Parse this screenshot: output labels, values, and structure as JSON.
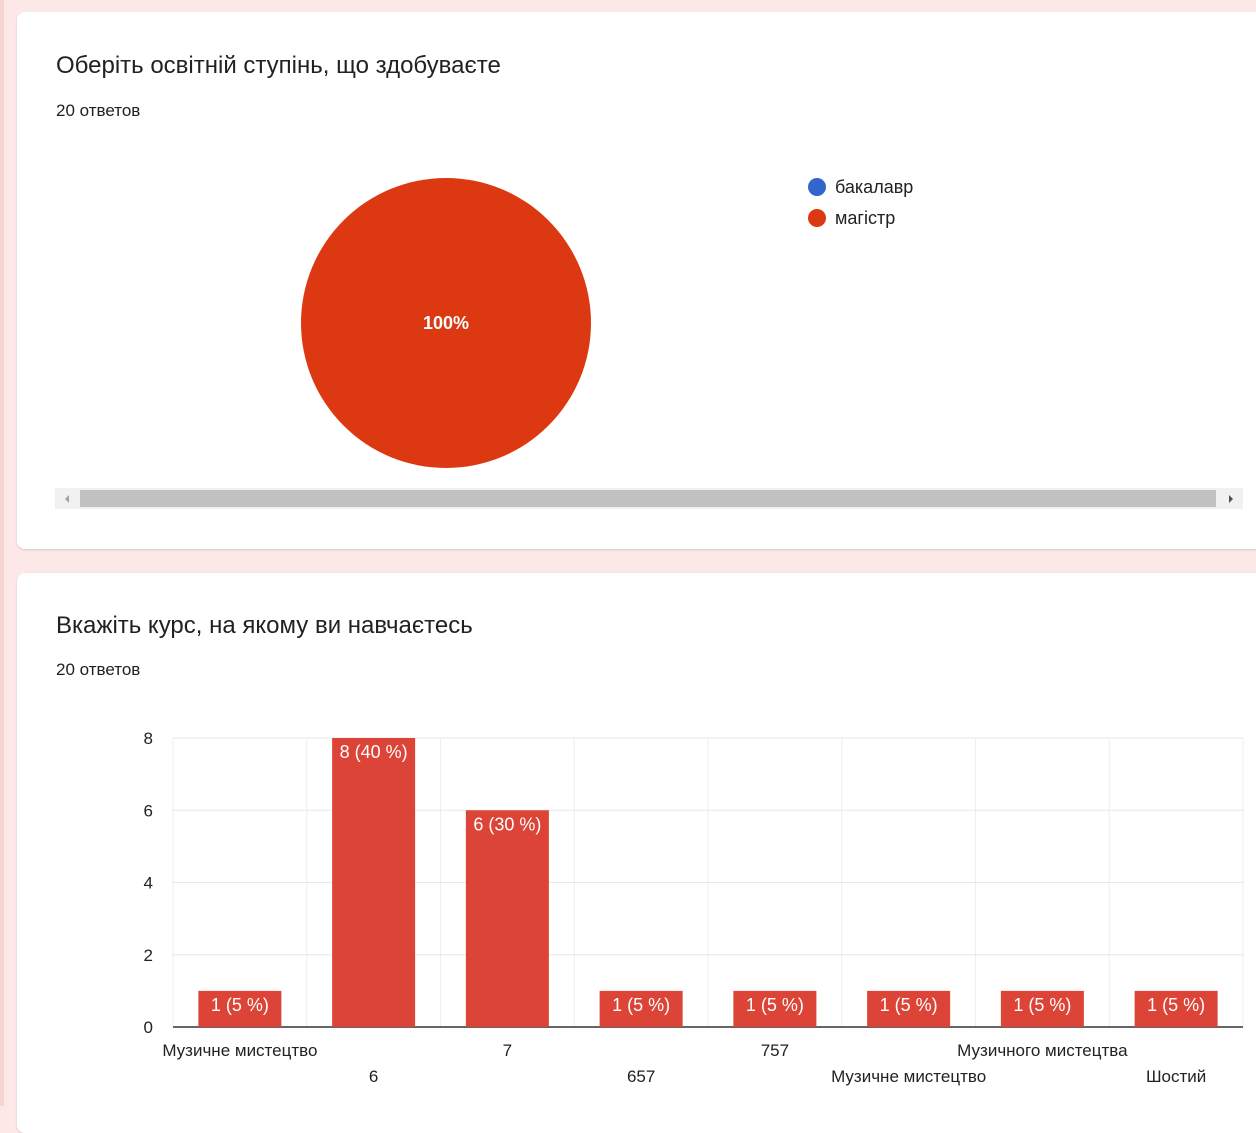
{
  "colors": {
    "accent": "#dc3912",
    "bar": "#db4437",
    "legend_blue": "#3366cc"
  },
  "question1": {
    "title": "Оберіть освітній ступінь, що здобуваєте",
    "responses": "20 ответов"
  },
  "question2": {
    "title": "Вкажіть курс, на якому ви навчаєтесь",
    "responses": "20 ответов"
  },
  "chart_data": [
    {
      "type": "pie",
      "title": "",
      "legend_position": "right",
      "series": [
        {
          "name": "бакалавр",
          "value": 0,
          "color": "#3366cc"
        },
        {
          "name": "магістр",
          "value": 20,
          "color": "#dc3912"
        }
      ],
      "slice_labels": [
        "100%"
      ]
    },
    {
      "type": "bar",
      "title": "",
      "categories": [
        "Музичне мистецтво",
        "6",
        "7",
        "657",
        "757",
        "Музичне мистецтво",
        "Музичного мистецтва",
        "Шостий"
      ],
      "values": [
        1,
        8,
        6,
        1,
        1,
        1,
        1,
        1
      ],
      "data_labels": [
        "1 (5 %)",
        "8 (40 %)",
        "6 (30 %)",
        "1 (5 %)",
        "1 (5 %)",
        "1 (5 %)",
        "1 (5 %)",
        "1 (5 %)"
      ],
      "ylim": [
        0,
        8
      ],
      "yticks": [
        "0",
        "2",
        "4",
        "6",
        "8"
      ],
      "grid": true,
      "color": "#db4437"
    }
  ]
}
